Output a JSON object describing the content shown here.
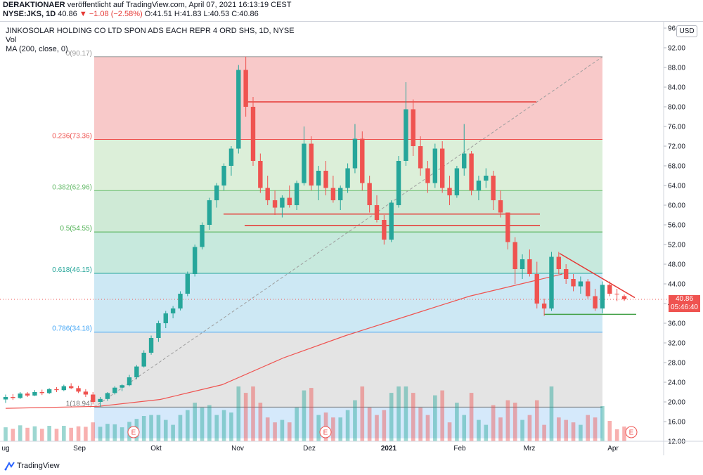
{
  "header": {
    "line1_author": "DERAKTIONAER",
    "line1_rest": "veröffentlicht auf TradingView.com, April 07, 2021 16:13:19 CEST",
    "symbol": "NYSE:JKS, 1D",
    "last": "40.86",
    "change": "−1.08 (−2.58%)",
    "ohlc": "O:41.51 H:41.83 L:40.53 C:40.86"
  },
  "legend": {
    "title": "JINKOSOLAR HOLDING CO LTD SPON ADS EACH REPR 4 ORD SHS, 1D, NYSE",
    "vol": "Vol",
    "ma": "MA (200, close, 0)"
  },
  "currency": "USD",
  "price_tag": {
    "price": "40.86",
    "countdown": "05:46:40"
  },
  "footer": {
    "brand": "TradingView"
  },
  "colors": {
    "up": "#26a69a",
    "down": "#ef5350",
    "ma": "#ef5350",
    "fib_0": "#f8c9c9",
    "fib_236": "#dcefd9",
    "fib_382": "#cfead6",
    "fib_5": "#c7e9dd",
    "fib_618": "#cde8f4",
    "fib_786": "#e4e4e4",
    "fib_1": "#d5e9fb"
  },
  "chart_data": {
    "type": "candlestick",
    "title": "JINKOSOLAR HOLDING CO LTD SPON ADS EACH REPR 4 ORD SHS, 1D, NYSE",
    "ylim": [
      12,
      96
    ],
    "y_ticks": [
      "12.00",
      "16.00",
      "20.00",
      "24.00",
      "28.00",
      "32.00",
      "36.00",
      "40.00",
      "44.00",
      "48.00",
      "52.00",
      "56.00",
      "60.00",
      "64.00",
      "68.00",
      "72.00",
      "76.00",
      "80.00",
      "84.00",
      "88.00",
      "92.00",
      "96.00"
    ],
    "x_ticks": [
      "ug",
      "Sep",
      "Okt",
      "Nov",
      "Dez",
      "2021",
      "Feb",
      "Mrz",
      "Apr"
    ],
    "earnings_markers": [
      "E",
      "E",
      "E"
    ],
    "fibonacci": [
      {
        "label": "0(90.17)",
        "level": 90.17
      },
      {
        "label": "0.236(73.36)",
        "level": 73.36
      },
      {
        "label": "0.382(62.96)",
        "level": 62.96
      },
      {
        "label": "0.5(54.55)",
        "level": 54.55
      },
      {
        "label": "0.618(46.15)",
        "level": 46.15
      },
      {
        "label": "0.786(34.18)",
        "level": 34.18
      },
      {
        "label": "1(18.94)",
        "level": 18.94
      }
    ],
    "trendlines": [
      {
        "name": "resistance-top",
        "from": [
          "Nov",
          81
        ],
        "to": [
          "Feb-late",
          81
        ]
      },
      {
        "name": "support-upper",
        "from": [
          "Nov",
          58.2
        ],
        "to": [
          "Feb-end",
          58.2
        ]
      },
      {
        "name": "support-lower",
        "from": [
          "Nov",
          55.9
        ],
        "to": [
          "Feb-end",
          55.9
        ]
      },
      {
        "name": "triangle-top",
        "from": [
          "Mrz-mid",
          50.2
        ],
        "to": [
          "Apr",
          41.2
        ]
      },
      {
        "name": "triangle-bottom",
        "from": [
          "Mrz",
          37.8
        ],
        "to": [
          "Apr",
          37.8
        ]
      }
    ],
    "ma200_points": [
      [
        0,
        18.7
      ],
      [
        0.15,
        19.1
      ],
      [
        0.25,
        20.5
      ],
      [
        0.35,
        23.5
      ],
      [
        0.45,
        29
      ],
      [
        0.55,
        33.5
      ],
      [
        0.65,
        37.5
      ],
      [
        0.75,
        41.5
      ],
      [
        0.85,
        44.5
      ],
      [
        0.9,
        46
      ]
    ],
    "last_price": 40.86,
    "candles_approx": [
      [
        20.5,
        21.5,
        19.8,
        21.0
      ],
      [
        21.0,
        21.6,
        20.4,
        20.8
      ],
      [
        20.8,
        22.0,
        20.6,
        21.7
      ],
      [
        21.7,
        22.0,
        21.0,
        21.3
      ],
      [
        21.3,
        22.4,
        21.2,
        22.0
      ],
      [
        22.0,
        22.5,
        21.4,
        21.8
      ],
      [
        21.8,
        22.8,
        21.6,
        22.6
      ],
      [
        22.6,
        23.0,
        22.0,
        22.4
      ],
      [
        22.4,
        23.5,
        22.2,
        23.2
      ],
      [
        23.2,
        23.8,
        22.6,
        22.8
      ],
      [
        22.8,
        23.3,
        21.8,
        22.1
      ],
      [
        22.1,
        22.6,
        21.0,
        21.5
      ],
      [
        21.5,
        22.0,
        19.5,
        20.0
      ],
      [
        20.0,
        21.0,
        19.0,
        20.6
      ],
      [
        20.6,
        22.0,
        20.2,
        21.8
      ],
      [
        21.8,
        23.2,
        21.5,
        22.9
      ],
      [
        22.9,
        23.6,
        22.2,
        23.4
      ],
      [
        23.4,
        25.5,
        23.2,
        25.0
      ],
      [
        25.0,
        27.5,
        24.6,
        27.2
      ],
      [
        27.2,
        30.5,
        27.0,
        30.0
      ],
      [
        30.0,
        33.5,
        29.6,
        33.0
      ],
      [
        33.0,
        36.5,
        32.2,
        36.0
      ],
      [
        36.0,
        38.5,
        35.0,
        38.0
      ],
      [
        38.0,
        39.5,
        37.0,
        39.0
      ],
      [
        39.0,
        42.5,
        38.6,
        42.0
      ],
      [
        42.0,
        46.5,
        41.5,
        46.0
      ],
      [
        46.0,
        52.0,
        45.5,
        51.5
      ],
      [
        51.5,
        56.5,
        51.0,
        56.0
      ],
      [
        56.0,
        61.5,
        55.0,
        61.0
      ],
      [
        61.0,
        64.5,
        59.5,
        64.0
      ],
      [
        64.0,
        68.5,
        63.0,
        68.0
      ],
      [
        68.0,
        72.0,
        66.0,
        71.5
      ],
      [
        71.5,
        88.5,
        70.5,
        87.5
      ],
      [
        87.5,
        90.2,
        78.0,
        80.0
      ],
      [
        80.0,
        82.0,
        68.0,
        69.0
      ],
      [
        69.0,
        70.5,
        62.5,
        63.5
      ],
      [
        63.5,
        66.0,
        60.0,
        61.0
      ],
      [
        61.0,
        63.0,
        58.0,
        59.5
      ],
      [
        59.5,
        62.0,
        57.5,
        61.5
      ],
      [
        61.5,
        64.0,
        59.5,
        60.0
      ],
      [
        60.0,
        65.0,
        59.0,
        64.5
      ],
      [
        64.5,
        76.0,
        64.0,
        72.5
      ],
      [
        72.5,
        74.0,
        63.0,
        64.0
      ],
      [
        64.0,
        68.0,
        61.0,
        67.0
      ],
      [
        67.0,
        69.0,
        62.0,
        63.5
      ],
      [
        63.5,
        66.0,
        60.5,
        61.0
      ],
      [
        61.0,
        64.0,
        59.0,
        63.5
      ],
      [
        63.5,
        68.5,
        62.5,
        67.5
      ],
      [
        67.5,
        76.5,
        66.5,
        73.5
      ],
      [
        73.5,
        75.0,
        63.0,
        64.5
      ],
      [
        64.5,
        66.0,
        58.5,
        60.0
      ],
      [
        60.0,
        62.0,
        56.5,
        57.0
      ],
      [
        57.0,
        58.0,
        52.0,
        53.0
      ],
      [
        53.0,
        61.0,
        52.5,
        60.5
      ],
      [
        60.0,
        70.0,
        59.5,
        69.0
      ],
      [
        69.0,
        85.0,
        68.0,
        79.5
      ],
      [
        79.5,
        81.5,
        70.0,
        72.0
      ],
      [
        72.0,
        74.0,
        66.0,
        67.5
      ],
      [
        67.5,
        69.0,
        62.5,
        64.5
      ],
      [
        64.5,
        72.5,
        63.5,
        71.5
      ],
      [
        71.5,
        73.0,
        62.5,
        63.5
      ],
      [
        63.5,
        66.0,
        60.0,
        62.0
      ],
      [
        62.0,
        68.0,
        61.5,
        67.5
      ],
      [
        67.5,
        76.5,
        66.0,
        70.5
      ],
      [
        70.5,
        71.0,
        62.0,
        63.0
      ],
      [
        63.0,
        66.0,
        61.0,
        65.0
      ],
      [
        65.0,
        67.5,
        63.5,
        66.0
      ],
      [
        66.0,
        67.0,
        59.0,
        61.0
      ],
      [
        61.0,
        63.0,
        57.5,
        58.5
      ],
      [
        58.5,
        56.0,
        51.0,
        52.5
      ],
      [
        52.5,
        53.5,
        44.0,
        47.0
      ],
      [
        47.0,
        50.0,
        45.0,
        49.0
      ],
      [
        49.0,
        51.0,
        45.5,
        46.0
      ],
      [
        46.0,
        48.5,
        39.0,
        40.0
      ],
      [
        40.0,
        41.0,
        37.5,
        39.0
      ],
      [
        39.0,
        50.5,
        38.5,
        49.5
      ],
      [
        49.5,
        50.5,
        46.0,
        47.0
      ],
      [
        47.0,
        48.0,
        44.0,
        45.0
      ],
      [
        45.0,
        46.0,
        42.5,
        43.5
      ],
      [
        43.5,
        45.5,
        42.0,
        44.5
      ],
      [
        44.5,
        45.0,
        41.0,
        41.5
      ],
      [
        41.5,
        43.0,
        38.5,
        39.0
      ],
      [
        39.0,
        44.5,
        38.0,
        43.8
      ],
      [
        43.8,
        44.5,
        41.5,
        42.0
      ],
      [
        42.0,
        43.0,
        40.5,
        41.9
      ],
      [
        41.51,
        41.83,
        40.53,
        40.86
      ]
    ]
  }
}
